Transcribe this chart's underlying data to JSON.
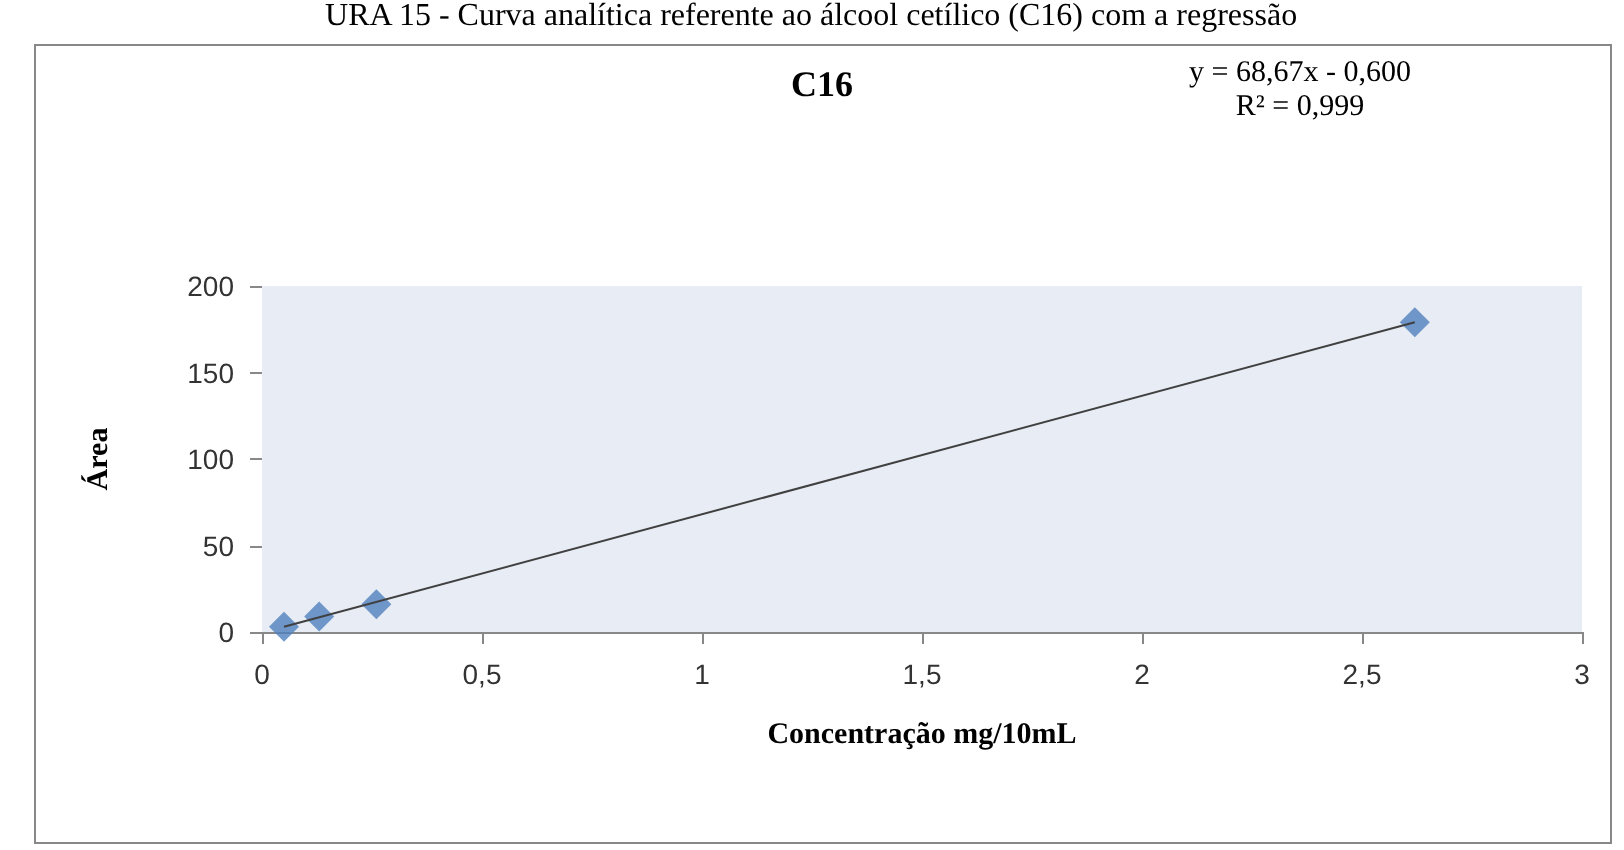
{
  "chart_data": {
    "type": "scatter",
    "title": "C16",
    "xlabel": "Concentração mg/10mL",
    "ylabel": "Área",
    "annotations": [
      "URA 15 - Curva analítica referente ao álcool cetílico (C16) com a regressão",
      "y = 68,67x - 0,600",
      "R² = 0,999"
    ],
    "series": [
      {
        "color": "#4f81bd",
        "x": [
          0.05,
          0.13,
          0.26,
          2.62
        ],
        "values": [
          3,
          9,
          16,
          179
        ]
      },
      {
        "type": "line",
        "color": "#404040",
        "x": [
          0.05,
          2.62
        ],
        "values": [
          3,
          179
        ],
        "marker": "none"
      }
    ],
    "xlim": [
      0,
      3
    ],
    "xticks": [
      0,
      {
        "value": 0.5,
        "label": "0,5"
      },
      1,
      {
        "value": 1.5,
        "label": "1,5"
      },
      2,
      {
        "value": 2.5,
        "label": "2,5"
      },
      3
    ],
    "ylim": [
      0,
      200
    ],
    "yticks": [
      0,
      50,
      100,
      150,
      200
    ],
    "grid": false,
    "marker": "diamond"
  }
}
